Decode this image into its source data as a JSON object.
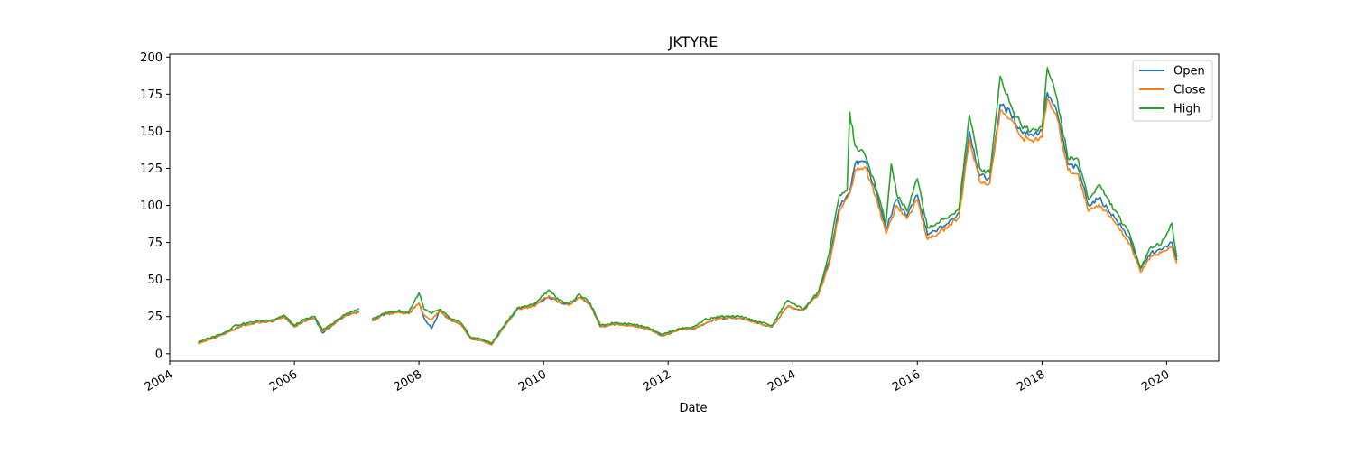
{
  "chart_data": {
    "type": "line",
    "title": "JKTYRE",
    "xlabel": "Date",
    "ylabel": "",
    "xlim": [
      "2004-01-01",
      "2020-11-01"
    ],
    "ylim": [
      -5,
      202
    ],
    "x_ticks": [
      "2004",
      "2006",
      "2008",
      "2010",
      "2012",
      "2014",
      "2016",
      "2018",
      "2020"
    ],
    "y_ticks": [
      0,
      25,
      50,
      75,
      100,
      125,
      150,
      175,
      200
    ],
    "grid": false,
    "legend_position": "top-right",
    "colors": {
      "Open": "#1f77b4",
      "Close": "#ff7f0e",
      "High": "#2ca02c"
    },
    "series": [
      {
        "name": "Open",
        "points": [
          [
            "2004-06-15",
            7
          ],
          [
            "2004-09-01",
            10
          ],
          [
            "2004-12-01",
            14
          ],
          [
            "2005-03-01",
            19
          ],
          [
            "2005-06-01",
            21
          ],
          [
            "2005-09-01",
            22
          ],
          [
            "2005-11-01",
            25
          ],
          [
            "2006-01-01",
            18
          ],
          [
            "2006-03-01",
            22
          ],
          [
            "2006-05-01",
            24
          ],
          [
            "2006-06-15",
            14
          ],
          [
            "2006-09-01",
            21
          ],
          [
            "2006-11-01",
            26
          ],
          [
            "2007-01-15",
            28
          ],
          [
            "2007-03-01",
            null
          ],
          [
            "2007-04-01",
            22
          ],
          [
            "2007-06-01",
            26
          ],
          [
            "2007-09-01",
            28
          ],
          [
            "2007-11-01",
            27
          ],
          [
            "2008-01-01",
            34
          ],
          [
            "2008-02-01",
            24
          ],
          [
            "2008-03-15",
            17
          ],
          [
            "2008-05-01",
            29
          ],
          [
            "2008-07-01",
            23
          ],
          [
            "2008-09-01",
            20
          ],
          [
            "2008-11-01",
            10
          ],
          [
            "2009-01-01",
            9
          ],
          [
            "2009-03-01",
            6
          ],
          [
            "2009-05-01",
            16
          ],
          [
            "2009-08-01",
            30
          ],
          [
            "2009-11-01",
            32
          ],
          [
            "2010-02-01",
            38
          ],
          [
            "2010-04-01",
            35
          ],
          [
            "2010-06-01",
            33
          ],
          [
            "2010-08-01",
            38
          ],
          [
            "2010-10-01",
            33
          ],
          [
            "2010-12-01",
            18
          ],
          [
            "2011-03-01",
            20
          ],
          [
            "2011-06-01",
            19
          ],
          [
            "2011-09-01",
            17
          ],
          [
            "2011-12-01",
            12
          ],
          [
            "2012-03-01",
            16
          ],
          [
            "2012-06-01",
            17
          ],
          [
            "2012-08-01",
            20
          ],
          [
            "2012-11-01",
            24
          ],
          [
            "2013-03-01",
            24
          ],
          [
            "2013-06-01",
            21
          ],
          [
            "2013-09-01",
            18
          ],
          [
            "2013-12-01",
            32
          ],
          [
            "2014-03-01",
            29
          ],
          [
            "2014-06-01",
            40
          ],
          [
            "2014-08-01",
            62
          ],
          [
            "2014-10-01",
            99
          ],
          [
            "2014-12-01",
            110
          ],
          [
            "2015-01-01",
            128
          ],
          [
            "2015-03-01",
            130
          ],
          [
            "2015-05-01",
            110
          ],
          [
            "2015-07-01",
            84
          ],
          [
            "2015-09-01",
            104
          ],
          [
            "2015-11-01",
            93
          ],
          [
            "2016-01-01",
            107
          ],
          [
            "2016-03-01",
            80
          ],
          [
            "2016-05-01",
            84
          ],
          [
            "2016-07-01",
            88
          ],
          [
            "2016-09-01",
            95
          ],
          [
            "2016-11-01",
            150
          ],
          [
            "2017-01-01",
            120
          ],
          [
            "2017-03-01",
            118
          ],
          [
            "2017-05-01",
            168
          ],
          [
            "2017-07-01",
            162
          ],
          [
            "2017-09-01",
            150
          ],
          [
            "2017-11-01",
            148
          ],
          [
            "2018-01-01",
            150
          ],
          [
            "2018-02-01",
            176
          ],
          [
            "2018-04-01",
            162
          ],
          [
            "2018-06-01",
            128
          ],
          [
            "2018-08-01",
            125
          ],
          [
            "2018-10-01",
            100
          ],
          [
            "2018-12-01",
            105
          ],
          [
            "2019-03-01",
            92
          ],
          [
            "2019-06-01",
            77
          ],
          [
            "2019-08-01",
            57
          ],
          [
            "2019-10-01",
            68
          ],
          [
            "2019-12-01",
            70
          ],
          [
            "2020-02-01",
            75
          ],
          [
            "2020-03-01",
            63
          ]
        ]
      },
      {
        "name": "Close",
        "points": [
          [
            "2004-06-15",
            7
          ],
          [
            "2004-09-01",
            10
          ],
          [
            "2004-12-01",
            14
          ],
          [
            "2005-03-01",
            19
          ],
          [
            "2005-06-01",
            21
          ],
          [
            "2005-09-01",
            22
          ],
          [
            "2005-11-01",
            25
          ],
          [
            "2006-01-01",
            18
          ],
          [
            "2006-03-01",
            22
          ],
          [
            "2006-05-01",
            24
          ],
          [
            "2006-06-15",
            15
          ],
          [
            "2006-09-01",
            21
          ],
          [
            "2006-11-01",
            26
          ],
          [
            "2007-01-15",
            28
          ],
          [
            "2007-03-01",
            null
          ],
          [
            "2007-04-01",
            22
          ],
          [
            "2007-06-01",
            26
          ],
          [
            "2007-09-01",
            28
          ],
          [
            "2007-11-01",
            27
          ],
          [
            "2008-01-01",
            34
          ],
          [
            "2008-02-01",
            26
          ],
          [
            "2008-03-15",
            23
          ],
          [
            "2008-05-01",
            29
          ],
          [
            "2008-07-01",
            23
          ],
          [
            "2008-09-01",
            20
          ],
          [
            "2008-11-01",
            10
          ],
          [
            "2009-01-01",
            9
          ],
          [
            "2009-03-01",
            6
          ],
          [
            "2009-05-01",
            16
          ],
          [
            "2009-08-01",
            30
          ],
          [
            "2009-11-01",
            32
          ],
          [
            "2010-02-01",
            39
          ],
          [
            "2010-04-01",
            35
          ],
          [
            "2010-06-01",
            33
          ],
          [
            "2010-08-01",
            38
          ],
          [
            "2010-10-01",
            33
          ],
          [
            "2010-12-01",
            18
          ],
          [
            "2011-03-01",
            20
          ],
          [
            "2011-06-01",
            19
          ],
          [
            "2011-09-01",
            17
          ],
          [
            "2011-12-01",
            12
          ],
          [
            "2012-03-01",
            16
          ],
          [
            "2012-06-01",
            17
          ],
          [
            "2012-08-01",
            20
          ],
          [
            "2012-11-01",
            24
          ],
          [
            "2013-03-01",
            24
          ],
          [
            "2013-06-01",
            21
          ],
          [
            "2013-09-01",
            18
          ],
          [
            "2013-12-01",
            32
          ],
          [
            "2014-03-01",
            29
          ],
          [
            "2014-06-01",
            40
          ],
          [
            "2014-08-01",
            60
          ],
          [
            "2014-10-01",
            96
          ],
          [
            "2014-12-01",
            108
          ],
          [
            "2015-01-01",
            124
          ],
          [
            "2015-03-01",
            126
          ],
          [
            "2015-05-01",
            106
          ],
          [
            "2015-07-01",
            81
          ],
          [
            "2015-09-01",
            100
          ],
          [
            "2015-11-01",
            91
          ],
          [
            "2016-01-01",
            104
          ],
          [
            "2016-03-01",
            77
          ],
          [
            "2016-05-01",
            81
          ],
          [
            "2016-07-01",
            86
          ],
          [
            "2016-09-01",
            92
          ],
          [
            "2016-11-01",
            145
          ],
          [
            "2017-01-01",
            116
          ],
          [
            "2017-03-01",
            115
          ],
          [
            "2017-05-01",
            164
          ],
          [
            "2017-07-01",
            158
          ],
          [
            "2017-09-01",
            146
          ],
          [
            "2017-11-01",
            144
          ],
          [
            "2018-01-01",
            146
          ],
          [
            "2018-02-01",
            172
          ],
          [
            "2018-04-01",
            158
          ],
          [
            "2018-06-01",
            124
          ],
          [
            "2018-08-01",
            121
          ],
          [
            "2018-10-01",
            96
          ],
          [
            "2018-12-01",
            101
          ],
          [
            "2019-03-01",
            89
          ],
          [
            "2019-06-01",
            74
          ],
          [
            "2019-08-01",
            55
          ],
          [
            "2019-10-01",
            66
          ],
          [
            "2019-12-01",
            68
          ],
          [
            "2020-02-01",
            72
          ],
          [
            "2020-03-01",
            61
          ]
        ]
      },
      {
        "name": "High",
        "points": [
          [
            "2004-06-15",
            8
          ],
          [
            "2004-09-01",
            11
          ],
          [
            "2004-12-01",
            15
          ],
          [
            "2005-01-15",
            19
          ],
          [
            "2005-03-01",
            20
          ],
          [
            "2005-06-01",
            22
          ],
          [
            "2005-09-01",
            23
          ],
          [
            "2005-11-01",
            26
          ],
          [
            "2006-01-01",
            19
          ],
          [
            "2006-03-01",
            23
          ],
          [
            "2006-05-01",
            25
          ],
          [
            "2006-06-15",
            16
          ],
          [
            "2006-09-01",
            22
          ],
          [
            "2006-11-01",
            27
          ],
          [
            "2007-01-15",
            30
          ],
          [
            "2007-03-01",
            null
          ],
          [
            "2007-04-01",
            23
          ],
          [
            "2007-06-01",
            27
          ],
          [
            "2007-09-01",
            29
          ],
          [
            "2007-11-01",
            28
          ],
          [
            "2008-01-01",
            41
          ],
          [
            "2008-02-01",
            30
          ],
          [
            "2008-03-15",
            27
          ],
          [
            "2008-05-01",
            30
          ],
          [
            "2008-07-01",
            24
          ],
          [
            "2008-09-01",
            21
          ],
          [
            "2008-11-01",
            11
          ],
          [
            "2009-01-01",
            10
          ],
          [
            "2009-03-01",
            7
          ],
          [
            "2009-05-01",
            17
          ],
          [
            "2009-08-01",
            31
          ],
          [
            "2009-11-01",
            33
          ],
          [
            "2010-02-01",
            43
          ],
          [
            "2010-04-01",
            36
          ],
          [
            "2010-06-01",
            34
          ],
          [
            "2010-08-01",
            40
          ],
          [
            "2010-10-01",
            34
          ],
          [
            "2010-12-01",
            19
          ],
          [
            "2011-03-01",
            21
          ],
          [
            "2011-06-01",
            20
          ],
          [
            "2011-09-01",
            18
          ],
          [
            "2011-12-01",
            13
          ],
          [
            "2012-03-01",
            17
          ],
          [
            "2012-06-01",
            18
          ],
          [
            "2012-08-01",
            23
          ],
          [
            "2012-11-01",
            25
          ],
          [
            "2013-03-01",
            25
          ],
          [
            "2013-06-01",
            22
          ],
          [
            "2013-09-01",
            19
          ],
          [
            "2013-12-01",
            36
          ],
          [
            "2014-03-01",
            30
          ],
          [
            "2014-06-01",
            42
          ],
          [
            "2014-08-01",
            67
          ],
          [
            "2014-10-01",
            107
          ],
          [
            "2014-11-15",
            110
          ],
          [
            "2014-12-01",
            163
          ],
          [
            "2015-01-01",
            140
          ],
          [
            "2015-03-01",
            134
          ],
          [
            "2015-05-01",
            113
          ],
          [
            "2015-07-01",
            88
          ],
          [
            "2015-08-01",
            128
          ],
          [
            "2015-09-01",
            108
          ],
          [
            "2015-11-01",
            96
          ],
          [
            "2016-01-01",
            118
          ],
          [
            "2016-03-01",
            85
          ],
          [
            "2016-05-01",
            88
          ],
          [
            "2016-07-01",
            92
          ],
          [
            "2016-09-01",
            98
          ],
          [
            "2016-11-01",
            161
          ],
          [
            "2017-01-01",
            125
          ],
          [
            "2017-03-01",
            122
          ],
          [
            "2017-05-01",
            187
          ],
          [
            "2017-07-01",
            168
          ],
          [
            "2017-09-01",
            154
          ],
          [
            "2017-11-01",
            151
          ],
          [
            "2018-01-01",
            153
          ],
          [
            "2018-02-01",
            193
          ],
          [
            "2018-04-01",
            171
          ],
          [
            "2018-06-01",
            132
          ],
          [
            "2018-08-01",
            131
          ],
          [
            "2018-10-01",
            104
          ],
          [
            "2018-12-01",
            114
          ],
          [
            "2019-03-01",
            97
          ],
          [
            "2019-06-01",
            80
          ],
          [
            "2019-08-01",
            58
          ],
          [
            "2019-10-01",
            72
          ],
          [
            "2019-12-01",
            74
          ],
          [
            "2020-02-01",
            88
          ],
          [
            "2020-03-01",
            65
          ]
        ]
      }
    ]
  }
}
